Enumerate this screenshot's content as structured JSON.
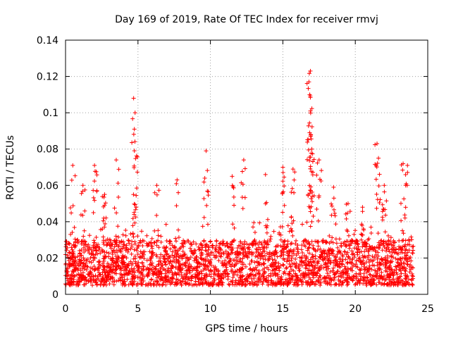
{
  "chart_data": {
    "type": "scatter",
    "title": "Day 169 of 2019, Rate Of TEC Index for receiver rmvj",
    "xlabel": "GPS time / hours",
    "ylabel": "ROTI / TECUs",
    "xlim": [
      0,
      25
    ],
    "ylim": [
      0,
      0.14
    ],
    "x_ticks": [
      0,
      5,
      10,
      15,
      20,
      25
    ],
    "x_tick_labels": [
      "0",
      "5",
      "10",
      "15",
      "20",
      "25"
    ],
    "y_ticks": [
      0,
      0.02,
      0.04,
      0.06,
      0.08,
      0.1,
      0.12,
      0.14
    ],
    "y_tick_labels": [
      "0",
      "0.02",
      "0.04",
      "0.06",
      "0.08",
      "0.1",
      "0.12",
      "0.14"
    ],
    "grid": true,
    "marker": "+",
    "series": [
      {
        "name": "ROTI",
        "color": "#ff0000",
        "x_range_hours": [
          0,
          24
        ],
        "typical_range": [
          0.005,
          0.03
        ],
        "spikes": [
          {
            "x": 0.5,
            "y": 0.071
          },
          {
            "x": 1.2,
            "y": 0.06
          },
          {
            "x": 2.0,
            "y": 0.071
          },
          {
            "x": 2.7,
            "y": 0.055
          },
          {
            "x": 3.5,
            "y": 0.074
          },
          {
            "x": 4.7,
            "y": 0.108
          },
          {
            "x": 4.8,
            "y": 0.1
          },
          {
            "x": 4.75,
            "y": 0.091
          },
          {
            "x": 6.3,
            "y": 0.06
          },
          {
            "x": 7.7,
            "y": 0.063
          },
          {
            "x": 9.7,
            "y": 0.079
          },
          {
            "x": 11.5,
            "y": 0.065
          },
          {
            "x": 12.3,
            "y": 0.074
          },
          {
            "x": 13.8,
            "y": 0.066
          },
          {
            "x": 15.0,
            "y": 0.07
          },
          {
            "x": 15.7,
            "y": 0.069
          },
          {
            "x": 16.9,
            "y": 0.123
          },
          {
            "x": 16.8,
            "y": 0.117
          },
          {
            "x": 16.85,
            "y": 0.11
          },
          {
            "x": 16.9,
            "y": 0.101
          },
          {
            "x": 16.85,
            "y": 0.089
          },
          {
            "x": 17.0,
            "y": 0.08
          },
          {
            "x": 17.5,
            "y": 0.074
          },
          {
            "x": 18.5,
            "y": 0.059
          },
          {
            "x": 19.5,
            "y": 0.05
          },
          {
            "x": 20.5,
            "y": 0.048
          },
          {
            "x": 21.5,
            "y": 0.083
          },
          {
            "x": 21.6,
            "y": 0.075
          },
          {
            "x": 22.0,
            "y": 0.06
          },
          {
            "x": 23.3,
            "y": 0.072
          },
          {
            "x": 23.6,
            "y": 0.071
          }
        ]
      }
    ]
  }
}
